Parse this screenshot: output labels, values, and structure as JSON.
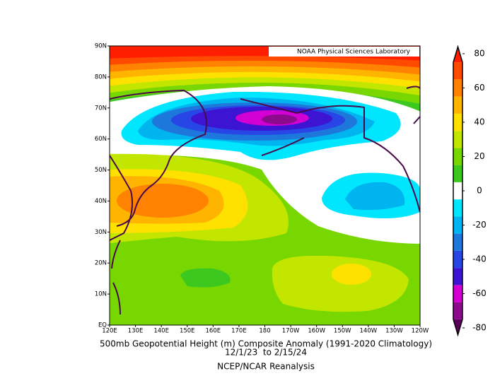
{
  "map": {
    "credit": "NOAA Physical Sciences Laboratory",
    "lat_labels": [
      "90N",
      "80N",
      "70N",
      "60N",
      "50N",
      "40N",
      "30N",
      "20N",
      "10N",
      "EQ"
    ],
    "lon_labels": [
      "120E",
      "130E",
      "140E",
      "150E",
      "160E",
      "170E",
      "180",
      "170W",
      "160W",
      "150W",
      "140W",
      "130W",
      "120W"
    ]
  },
  "caption": {
    "title": "500mb Geopotential Height (m) Composite Anomaly (1991-2020 Climatology)",
    "dates": "12/1/23  to 2/15/24",
    "source": "NCEP/NCAR Reanalysis"
  },
  "colorbar": {
    "ticks": [
      80,
      60,
      40,
      20,
      0,
      -20,
      -40,
      -60,
      -80
    ],
    "bounds": [
      -75,
      -65,
      -55,
      -45,
      -35,
      -25,
      -15,
      -5,
      5,
      15,
      25,
      35,
      45,
      55,
      65,
      75
    ],
    "colors": [
      "#5a005a",
      "#8c0a8c",
      "#d200d2",
      "#3c14d2",
      "#2846e6",
      "#1e78dc",
      "#00b4f0",
      "#00e6ff",
      "#ffffff",
      "#3cc81e",
      "#78d700",
      "#c3e600",
      "#ffe100",
      "#ffb400",
      "#ff8200",
      "#ff4b00",
      "#ff1e00"
    ]
  }
}
